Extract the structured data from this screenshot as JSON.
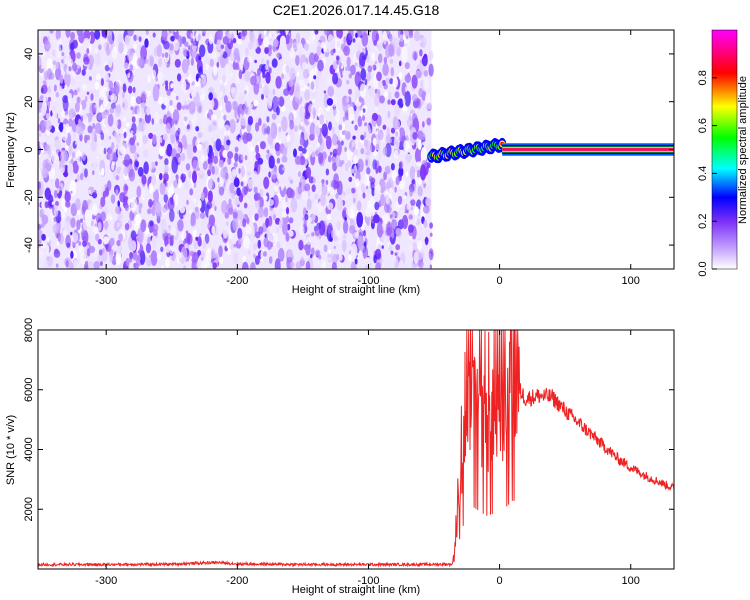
{
  "figure": {
    "title": "C2E1.2026.017.14.45.G18"
  },
  "chart_data": [
    {
      "type": "heatmap",
      "name": "spectrogram",
      "title": "",
      "xlabel": "Height of straight line (km)",
      "ylabel": "Frequency (Hz)",
      "xlim": [
        -352,
        133
      ],
      "ylim": [
        -50,
        50
      ],
      "xticks": [
        -300,
        -200,
        -100,
        0,
        100
      ],
      "yticks": [
        -40,
        -20,
        0,
        20,
        40
      ],
      "grid": false,
      "colorbar": {
        "label": "Normalized spectral amplitude",
        "range": [
          0,
          1
        ],
        "ticks": [
          "0.0",
          "0.2",
          "0.4",
          "0.6",
          "0.8"
        ],
        "colormap": [
          "#ffffff",
          "#7b2ff7",
          "#0000ff",
          "#00ffff",
          "#00ff00",
          "#ffff00",
          "#ff0000",
          "#ff00ff"
        ]
      },
      "regions": [
        {
          "label": "noise",
          "x_range": [
            -352,
            -52
          ],
          "freq_range": [
            -50,
            50
          ],
          "amplitude": [
            0.0,
            0.2
          ]
        },
        {
          "label": "signal wiggle",
          "x_range": [
            -52,
            2
          ],
          "freq_center": [
            -3,
            -2,
            -1,
            0,
            1,
            2
          ],
          "amplitude": [
            0.3,
            1.0
          ]
        },
        {
          "label": "stable signal",
          "x_range": [
            2,
            133
          ],
          "freq_center": 0,
          "amplitude": 1.0
        }
      ]
    },
    {
      "type": "line",
      "name": "snr",
      "title": "",
      "xlabel": "Height of straight line (km)",
      "ylabel": "SNR (10 * v/v)",
      "xlim": [
        -352,
        133
      ],
      "ylim": [
        0,
        8000
      ],
      "xticks": [
        -300,
        -200,
        -100,
        0,
        100
      ],
      "yticks": [
        2000,
        4000,
        6000,
        8000
      ],
      "grid": false,
      "series": [
        {
          "name": "SNR",
          "color": "#ee2222",
          "x": [
            -352,
            -300,
            -250,
            -215,
            -200,
            -150,
            -100,
            -60,
            -36,
            -33,
            -30,
            -25,
            -20,
            -15,
            -10,
            -5,
            0,
            5,
            10,
            15,
            20,
            30,
            40,
            50,
            60,
            70,
            80,
            90,
            100,
            110,
            120,
            133
          ],
          "y": [
            150,
            150,
            160,
            220,
            170,
            150,
            150,
            150,
            160,
            1200,
            3000,
            5000,
            5600,
            5200,
            4800,
            5000,
            5000,
            5600,
            6200,
            6000,
            5700,
            5800,
            5750,
            5300,
            4900,
            4500,
            4100,
            3700,
            3400,
            3150,
            2950,
            2700
          ]
        }
      ]
    }
  ]
}
